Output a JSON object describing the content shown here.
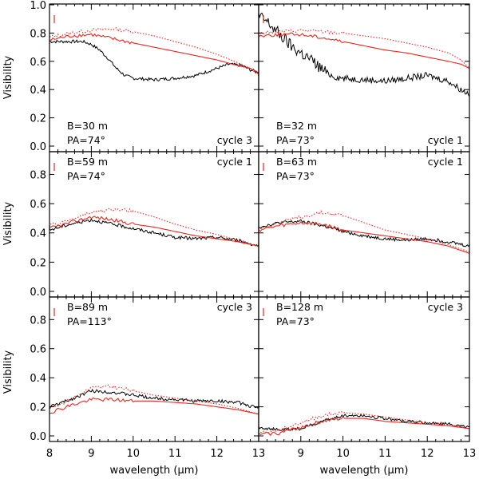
{
  "figure": {
    "xlabel": "wavelength (μm)",
    "ylabel": "Visibility",
    "xlim": [
      8,
      13
    ],
    "ylim": [
      0,
      1.0
    ],
    "xticks": [
      8,
      9,
      10,
      11,
      12,
      13
    ],
    "top_row_yticks": [
      "0.0",
      "0.2",
      "0.4",
      "0.6",
      "0.8",
      "1.0"
    ],
    "other_row_yticks": [
      "0.0",
      "0.2",
      "0.4",
      "0.6",
      "0.8"
    ],
    "colors": {
      "observed": "#000000",
      "model_solid": "#e8261f",
      "model_dotted": "#e8261f"
    }
  },
  "chart_data": [
    {
      "type": "line",
      "baseline": "B=30 m",
      "pa": "PA=74°",
      "cycle": "cycle 3",
      "series": [
        {
          "style": "observed",
          "x": [
            8.0,
            8.5,
            8.8,
            9.0,
            9.2,
            9.4,
            9.6,
            9.8,
            10.0,
            10.5,
            11.0,
            11.5,
            11.8,
            12.0,
            12.3,
            12.6,
            12.8,
            13.0
          ],
          "values": [
            0.74,
            0.74,
            0.74,
            0.72,
            0.68,
            0.62,
            0.55,
            0.5,
            0.48,
            0.47,
            0.48,
            0.5,
            0.53,
            0.55,
            0.58,
            0.57,
            0.54,
            0.52
          ]
        },
        {
          "style": "model_solid",
          "x": [
            8.0,
            8.5,
            9.0,
            9.5,
            10.0,
            10.5,
            11.0,
            11.5,
            12.0,
            12.5,
            12.8,
            13.0
          ],
          "values": [
            0.75,
            0.78,
            0.79,
            0.76,
            0.73,
            0.7,
            0.67,
            0.64,
            0.61,
            0.57,
            0.55,
            0.52
          ]
        },
        {
          "style": "model_dotted",
          "x": [
            8.0,
            8.5,
            9.0,
            9.5,
            10.0,
            10.5,
            11.0,
            11.5,
            12.0,
            12.5,
            12.8,
            13.0
          ],
          "values": [
            0.77,
            0.8,
            0.82,
            0.83,
            0.81,
            0.78,
            0.74,
            0.7,
            0.65,
            0.59,
            0.55,
            0.5
          ]
        }
      ]
    },
    {
      "type": "line",
      "baseline": "B=32 m",
      "pa": "PA=73°",
      "cycle": "cycle 1",
      "series": [
        {
          "style": "observed",
          "x": [
            8.0,
            8.2,
            8.4,
            8.6,
            8.8,
            9.0,
            9.2,
            9.4,
            9.6,
            9.8,
            10.0,
            10.5,
            11.0,
            11.5,
            12.0,
            12.5,
            12.8,
            13.0
          ],
          "values": [
            0.92,
            0.88,
            0.82,
            0.76,
            0.7,
            0.66,
            0.62,
            0.57,
            0.52,
            0.49,
            0.48,
            0.47,
            0.46,
            0.48,
            0.5,
            0.46,
            0.4,
            0.37
          ]
        },
        {
          "style": "model_solid",
          "x": [
            8.0,
            8.5,
            9.0,
            9.5,
            10.0,
            10.5,
            11.0,
            11.5,
            12.0,
            12.5,
            12.8,
            13.0
          ],
          "values": [
            0.78,
            0.79,
            0.79,
            0.77,
            0.74,
            0.71,
            0.68,
            0.66,
            0.63,
            0.6,
            0.58,
            0.55
          ]
        },
        {
          "style": "model_dotted",
          "x": [
            8.0,
            8.5,
            9.0,
            9.5,
            10.0,
            10.5,
            11.0,
            11.5,
            12.0,
            12.5,
            12.8,
            13.0
          ],
          "values": [
            0.8,
            0.81,
            0.82,
            0.81,
            0.8,
            0.78,
            0.76,
            0.73,
            0.7,
            0.66,
            0.61,
            0.55
          ]
        }
      ]
    },
    {
      "type": "line",
      "baseline": "B=59 m",
      "pa": "PA=74°",
      "cycle": "cycle 1",
      "series": [
        {
          "style": "observed",
          "x": [
            8.0,
            8.5,
            9.0,
            9.5,
            10.0,
            10.5,
            11.0,
            11.5,
            12.0,
            12.5,
            13.0
          ],
          "values": [
            0.42,
            0.46,
            0.49,
            0.46,
            0.43,
            0.4,
            0.37,
            0.36,
            0.37,
            0.35,
            0.31
          ]
        },
        {
          "style": "model_solid",
          "x": [
            8.0,
            8.5,
            9.0,
            9.5,
            10.0,
            10.5,
            11.0,
            11.5,
            12.0,
            12.5,
            13.0
          ],
          "values": [
            0.43,
            0.47,
            0.51,
            0.49,
            0.46,
            0.44,
            0.41,
            0.38,
            0.36,
            0.34,
            0.31
          ]
        },
        {
          "style": "model_dotted",
          "x": [
            8.0,
            8.5,
            9.0,
            9.5,
            10.0,
            10.5,
            11.0,
            11.5,
            12.0,
            12.5,
            13.0
          ],
          "values": [
            0.45,
            0.49,
            0.54,
            0.56,
            0.55,
            0.51,
            0.46,
            0.42,
            0.39,
            0.35,
            0.31
          ]
        }
      ]
    },
    {
      "type": "line",
      "baseline": "B=63 m",
      "pa": "PA=73°",
      "cycle": "cycle 1",
      "series": [
        {
          "style": "observed",
          "x": [
            8.0,
            8.5,
            9.0,
            9.5,
            10.0,
            10.5,
            11.0,
            11.5,
            12.0,
            12.5,
            13.0
          ],
          "values": [
            0.44,
            0.47,
            0.48,
            0.45,
            0.41,
            0.38,
            0.36,
            0.35,
            0.36,
            0.34,
            0.31
          ]
        },
        {
          "style": "model_solid",
          "x": [
            8.0,
            8.5,
            9.0,
            9.5,
            10.0,
            10.5,
            11.0,
            11.5,
            12.0,
            12.5,
            13.0
          ],
          "values": [
            0.42,
            0.45,
            0.47,
            0.46,
            0.42,
            0.4,
            0.38,
            0.36,
            0.34,
            0.31,
            0.26
          ]
        },
        {
          "style": "model_dotted",
          "x": [
            8.0,
            8.5,
            9.0,
            9.5,
            10.0,
            10.5,
            11.0,
            11.5,
            12.0,
            12.5,
            13.0
          ],
          "values": [
            0.43,
            0.47,
            0.51,
            0.54,
            0.52,
            0.47,
            0.42,
            0.39,
            0.36,
            0.32,
            0.27
          ]
        }
      ]
    },
    {
      "type": "line",
      "baseline": "B=89 m",
      "pa": "PA=113°",
      "cycle": "cycle 3",
      "series": [
        {
          "style": "observed",
          "x": [
            8.0,
            8.5,
            9.0,
            9.5,
            10.0,
            10.5,
            11.0,
            11.5,
            12.0,
            12.5,
            13.0
          ],
          "values": [
            0.2,
            0.25,
            0.31,
            0.3,
            0.28,
            0.26,
            0.25,
            0.24,
            0.24,
            0.23,
            0.19
          ]
        },
        {
          "style": "model_solid",
          "x": [
            8.0,
            8.5,
            9.0,
            9.5,
            10.0,
            10.5,
            11.0,
            11.5,
            12.0,
            12.5,
            13.0
          ],
          "values": [
            0.16,
            0.21,
            0.25,
            0.25,
            0.24,
            0.24,
            0.23,
            0.22,
            0.2,
            0.18,
            0.15
          ]
        },
        {
          "style": "model_dotted",
          "x": [
            8.0,
            8.5,
            9.0,
            9.5,
            10.0,
            10.5,
            11.0,
            11.5,
            12.0,
            12.5,
            13.0
          ],
          "values": [
            0.19,
            0.25,
            0.33,
            0.34,
            0.31,
            0.28,
            0.26,
            0.24,
            0.22,
            0.19,
            0.15
          ]
        }
      ]
    },
    {
      "type": "line",
      "baseline": "B=128 m",
      "pa": "PA=73°",
      "cycle": "cycle 3",
      "series": [
        {
          "style": "observed",
          "x": [
            8.0,
            8.5,
            9.0,
            9.5,
            10.0,
            10.5,
            11.0,
            11.5,
            12.0,
            12.5,
            13.0
          ],
          "values": [
            0.06,
            0.04,
            0.05,
            0.1,
            0.14,
            0.14,
            0.12,
            0.1,
            0.09,
            0.08,
            0.06
          ]
        },
        {
          "style": "model_solid",
          "x": [
            8.0,
            8.5,
            9.0,
            9.5,
            10.0,
            10.5,
            11.0,
            11.5,
            12.0,
            12.5,
            13.0
          ],
          "values": [
            0.01,
            0.02,
            0.06,
            0.1,
            0.12,
            0.12,
            0.1,
            0.09,
            0.08,
            0.07,
            0.05
          ]
        },
        {
          "style": "model_dotted",
          "x": [
            8.0,
            8.5,
            9.0,
            9.5,
            10.0,
            10.5,
            11.0,
            11.5,
            12.0,
            12.5,
            13.0
          ],
          "values": [
            0.02,
            0.04,
            0.09,
            0.14,
            0.16,
            0.15,
            0.13,
            0.11,
            0.09,
            0.08,
            0.05
          ]
        }
      ]
    }
  ]
}
